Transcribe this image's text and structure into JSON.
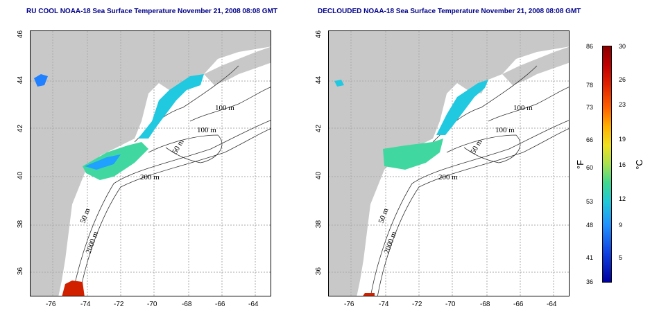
{
  "panels": [
    {
      "title": "RU COOL NOAA-18 Sea Surface Temperature November 21, 2008 08:08 GMT"
    },
    {
      "title": "DECLOUDED NOAA-18 Sea Surface Temperature November 21, 2008 08:08 GMT"
    }
  ],
  "axes": {
    "y_ticks": [
      "46",
      "44",
      "42",
      "40",
      "38",
      "36"
    ],
    "x_ticks": [
      "-76",
      "-74",
      "-72",
      "-70",
      "-68",
      "-66",
      "-64"
    ]
  },
  "contours": [
    "100 m",
    "100 m",
    "50 m",
    "200 m",
    "50 m",
    "2000 m"
  ],
  "colorbar": {
    "f_labels": [
      "86",
      "78",
      "73",
      "66",
      "60",
      "53",
      "48",
      "41",
      "36"
    ],
    "c_labels": [
      "30",
      "26",
      "23",
      "19",
      "16",
      "12",
      "9",
      "5"
    ],
    "f_unit": "°F",
    "c_unit": "°C"
  },
  "colors": {
    "land": "#c8c8c8",
    "title": "#00008b",
    "contour": "#333333",
    "grid": "#aaaaaa"
  }
}
